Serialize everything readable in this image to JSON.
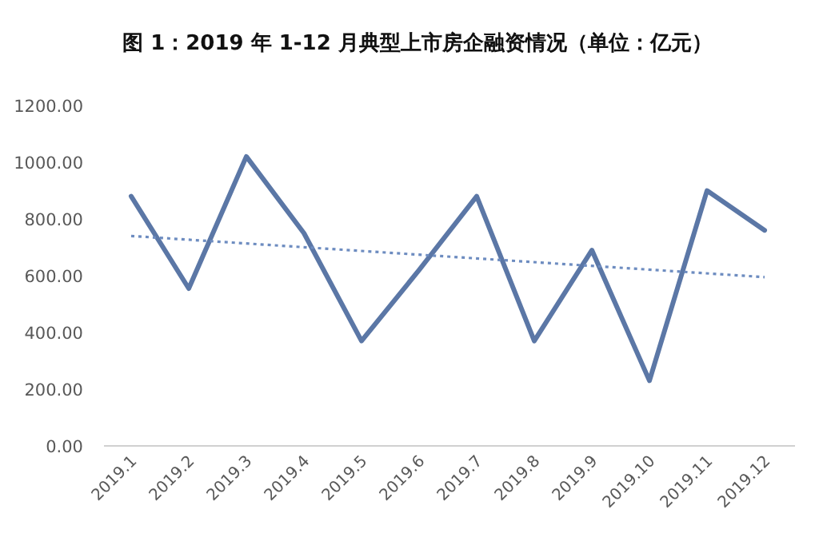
{
  "chart_data": {
    "type": "line",
    "title": "图 1：2019 年 1-12 月典型上市房企融资情况（单位：亿元）",
    "categories": [
      "2019.1",
      "2019.2",
      "2019.3",
      "2019.4",
      "2019.5",
      "2019.6",
      "2019.7",
      "2019.8",
      "2019.9",
      "2019.10",
      "2019.11",
      "2019.12"
    ],
    "series": [
      {
        "color": "#5b77a6",
        "line_style": "solid",
        "values": [
          880,
          555,
          1020,
          750,
          370,
          620,
          880,
          370,
          690,
          230,
          900,
          760
        ]
      },
      {
        "type": "line",
        "color": "#6d8cc0",
        "line_style": "dotted",
        "x": [
          "2019.1",
          "2019.12"
        ],
        "values": [
          740,
          595
        ]
      }
    ],
    "ylim": [
      0,
      1200
    ],
    "yticks": [
      {
        "value": 0,
        "label": "0.00"
      },
      {
        "value": 200,
        "label": "200.00"
      },
      {
        "value": 400,
        "label": "400.00"
      },
      {
        "value": 600,
        "label": "600.00"
      },
      {
        "value": 800,
        "label": "800.00"
      },
      {
        "value": 1000,
        "label": "1000.00"
      },
      {
        "value": 1200,
        "label": "1200.00"
      }
    ]
  }
}
